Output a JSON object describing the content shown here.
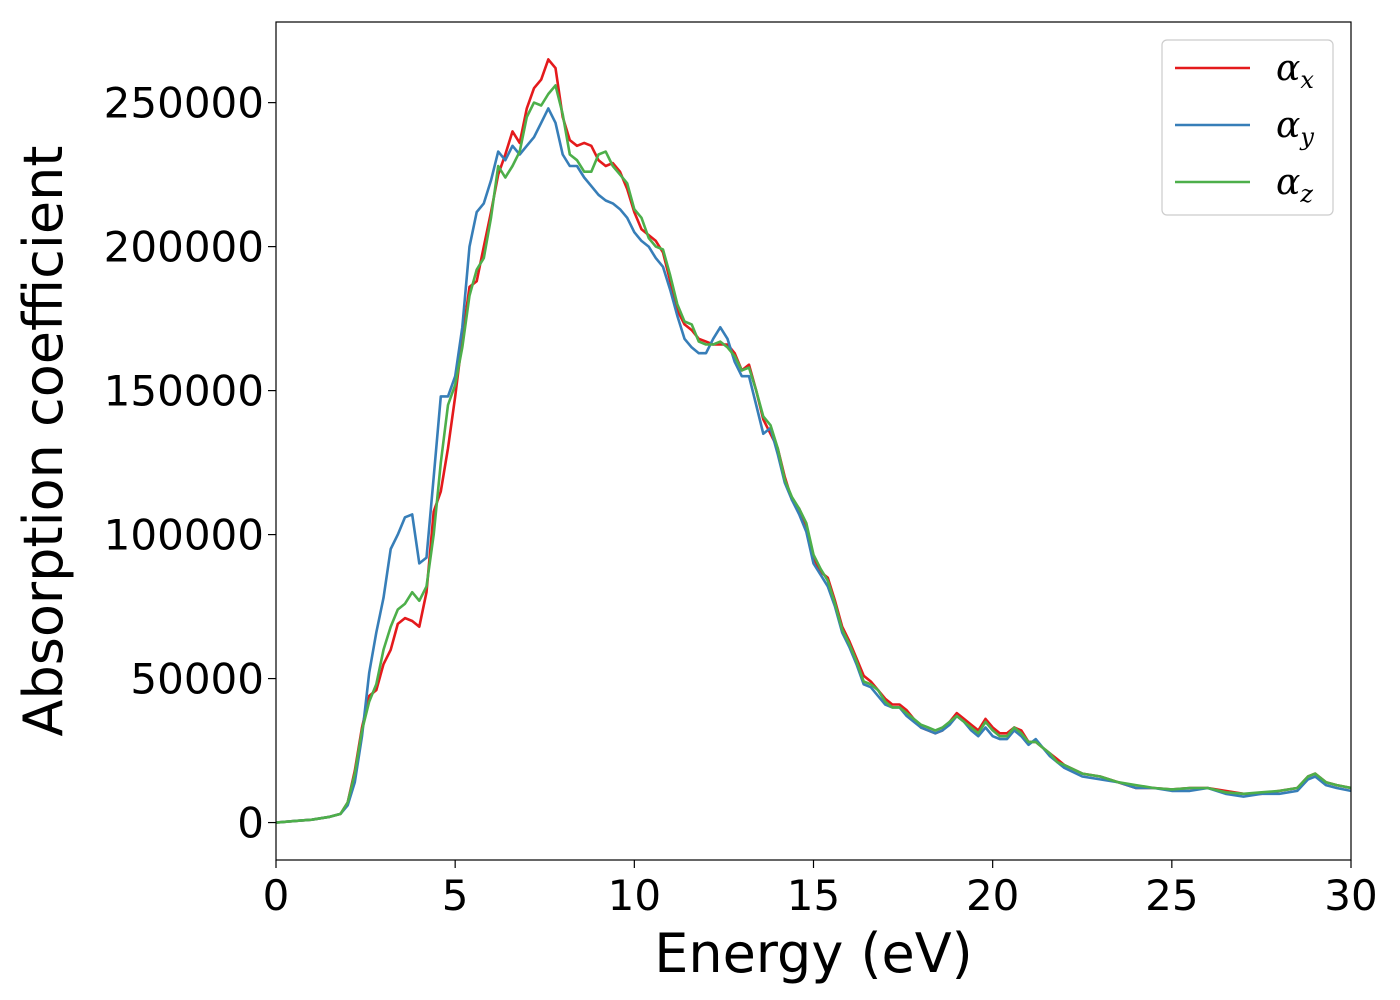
{
  "chart_data": {
    "type": "line",
    "title": "",
    "xlabel": "Energy (eV)",
    "ylabel": "Absorption coefficient",
    "xlim": [
      0,
      30
    ],
    "ylim": [
      -13000,
      278000
    ],
    "xticks": [
      0,
      5,
      10,
      15,
      20,
      25,
      30
    ],
    "yticks": [
      0,
      50000,
      100000,
      150000,
      200000,
      250000
    ],
    "grid": false,
    "legend_position": "top-right",
    "x": [
      0,
      0.5,
      1.0,
      1.5,
      1.8,
      2.0,
      2.2,
      2.4,
      2.6,
      2.8,
      3.0,
      3.2,
      3.4,
      3.6,
      3.8,
      4.0,
      4.2,
      4.4,
      4.6,
      4.8,
      5.0,
      5.2,
      5.4,
      5.6,
      5.8,
      6.0,
      6.2,
      6.4,
      6.6,
      6.8,
      7.0,
      7.2,
      7.4,
      7.6,
      7.8,
      8.0,
      8.2,
      8.4,
      8.6,
      8.8,
      9.0,
      9.2,
      9.4,
      9.6,
      9.8,
      10.0,
      10.2,
      10.4,
      10.6,
      10.8,
      11.0,
      11.2,
      11.4,
      11.6,
      11.8,
      12.0,
      12.2,
      12.4,
      12.6,
      12.8,
      13.0,
      13.2,
      13.4,
      13.6,
      13.8,
      14.0,
      14.2,
      14.4,
      14.6,
      14.8,
      15.0,
      15.2,
      15.4,
      15.6,
      15.8,
      16.0,
      16.2,
      16.4,
      16.6,
      16.8,
      17.0,
      17.2,
      17.4,
      17.6,
      17.8,
      18.0,
      18.2,
      18.4,
      18.6,
      18.8,
      19.0,
      19.2,
      19.4,
      19.6,
      19.8,
      20.0,
      20.2,
      20.4,
      20.6,
      20.8,
      21.0,
      21.2,
      21.4,
      21.6,
      21.8,
      22.0,
      22.5,
      23.0,
      23.5,
      24.0,
      24.5,
      25.0,
      25.5,
      26.0,
      26.5,
      27.0,
      27.5,
      28.0,
      28.5,
      28.8,
      29.0,
      29.3,
      29.6,
      30.0
    ],
    "series": [
      {
        "name": "α",
        "subscript": "x",
        "color": "#e41a1c",
        "values": [
          0,
          500,
          1000,
          2000,
          3000,
          7000,
          18000,
          33000,
          44000,
          46000,
          55000,
          60000,
          69000,
          71000,
          70000,
          68000,
          80000,
          108000,
          115000,
          130000,
          148000,
          168000,
          186000,
          188000,
          200000,
          212000,
          225000,
          232000,
          240000,
          236000,
          248000,
          255000,
          258000,
          265000,
          262000,
          245000,
          237000,
          235000,
          236000,
          235000,
          230000,
          228000,
          229000,
          226000,
          220000,
          212000,
          206000,
          204000,
          202000,
          198000,
          188000,
          178000,
          173000,
          171000,
          168000,
          167000,
          166000,
          166000,
          166000,
          163000,
          157000,
          159000,
          150000,
          140000,
          135000,
          130000,
          120000,
          112000,
          109000,
          103000,
          92000,
          87000,
          85000,
          77000,
          68000,
          63000,
          57000,
          51000,
          49000,
          46000,
          43000,
          41000,
          41000,
          39000,
          36000,
          33000,
          32000,
          31000,
          32000,
          35000,
          38000,
          36000,
          34000,
          32000,
          36000,
          33000,
          31000,
          31000,
          33000,
          32000,
          28000,
          28000,
          26000,
          24000,
          22000,
          20000,
          17000,
          16000,
          14000,
          12000,
          12000,
          11500,
          12000,
          12000,
          11000,
          10000,
          10000,
          11000,
          12000,
          16000,
          17000,
          14000,
          13000,
          12000
        ]
      },
      {
        "name": "α",
        "subscript": "y",
        "color": "#377eb8",
        "values": [
          0,
          500,
          1000,
          2000,
          3000,
          6000,
          14000,
          30000,
          52000,
          66000,
          78000,
          95000,
          100000,
          106000,
          107000,
          90000,
          92000,
          120000,
          148000,
          148000,
          155000,
          172000,
          200000,
          212000,
          215000,
          223000,
          233000,
          230000,
          235000,
          232000,
          235000,
          238000,
          243000,
          248000,
          243000,
          232000,
          228000,
          228000,
          224000,
          221000,
          218000,
          216000,
          215000,
          213000,
          210000,
          205000,
          202000,
          200000,
          196000,
          193000,
          185000,
          176000,
          168000,
          165000,
          163000,
          163000,
          168000,
          172000,
          168000,
          160000,
          155000,
          155000,
          145000,
          135000,
          137000,
          128000,
          118000,
          112000,
          107000,
          101000,
          90000,
          86000,
          82000,
          75000,
          66000,
          61000,
          55000,
          48000,
          47000,
          44000,
          41000,
          40000,
          40000,
          37000,
          35000,
          33000,
          32000,
          31000,
          32000,
          34000,
          37000,
          35000,
          32000,
          30000,
          33000,
          30000,
          29000,
          29000,
          32000,
          30000,
          27000,
          29000,
          26000,
          23000,
          21000,
          19000,
          16000,
          15000,
          14000,
          12000,
          12000,
          11000,
          11000,
          12000,
          10000,
          9000,
          10000,
          10000,
          11000,
          15000,
          16000,
          13000,
          12000,
          11000
        ]
      },
      {
        "name": "α",
        "subscript": "z",
        "color": "#4daf4a",
        "values": [
          0,
          500,
          1000,
          2000,
          3000,
          7000,
          17000,
          32000,
          42000,
          48000,
          60000,
          68000,
          74000,
          76000,
          80000,
          77000,
          82000,
          100000,
          125000,
          145000,
          152000,
          165000,
          183000,
          192000,
          196000,
          210000,
          228000,
          224000,
          228000,
          233000,
          245000,
          250000,
          249000,
          253000,
          256000,
          246000,
          232000,
          230000,
          226000,
          226000,
          232000,
          233000,
          228000,
          225000,
          222000,
          213000,
          210000,
          203000,
          200000,
          199000,
          190000,
          180000,
          174000,
          173000,
          167000,
          166000,
          166000,
          167000,
          165000,
          162000,
          157000,
          158000,
          150000,
          141000,
          138000,
          130000,
          119000,
          113000,
          109000,
          104000,
          93000,
          88000,
          84000,
          76000,
          67000,
          62000,
          56000,
          49000,
          48000,
          46000,
          42000,
          40000,
          40000,
          38000,
          36000,
          34000,
          33000,
          32000,
          33000,
          35000,
          37000,
          35000,
          33000,
          31000,
          35000,
          32000,
          30000,
          30000,
          33000,
          31000,
          28000,
          28000,
          26000,
          24000,
          21000,
          20000,
          17000,
          16000,
          14000,
          13000,
          12000,
          11500,
          12000,
          12000,
          10500,
          10000,
          10500,
          11000,
          12000,
          16000,
          17000,
          14000,
          13000,
          12000
        ]
      }
    ]
  }
}
